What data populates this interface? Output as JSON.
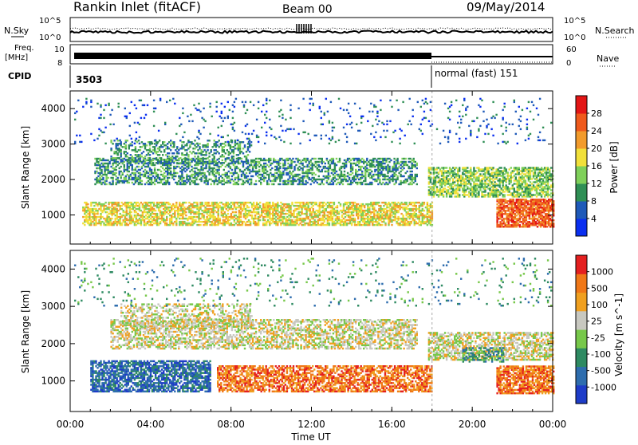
{
  "header": {
    "station": "Rankin Inlet (fitACF)",
    "beam": "Beam 00",
    "date": "09/May/2014"
  },
  "top_panels": {
    "nsky_label": "N.Sky",
    "nsearch_label": "N.Search",
    "noise_ticks": [
      "10^5",
      "10^0"
    ],
    "freq_label_line1": "Freq.",
    "freq_label_line2": "[MHz]",
    "freq_ticks": [
      "10",
      "8"
    ],
    "nave_label": "Nave",
    "nave_ticks": [
      "60",
      "0"
    ],
    "cpid_label": "CPID",
    "cpid_segments": [
      {
        "text": "3503",
        "start_hour": 0
      },
      {
        "text": "normal (fast) 151",
        "start_hour": 18
      }
    ]
  },
  "chart_data": [
    {
      "type": "heatmap",
      "title": "",
      "xlabel": "Time UT",
      "ylabel": "Slant Range [km]",
      "x_ticks": [
        "00:00",
        "04:00",
        "08:00",
        "12:00",
        "16:00",
        "20:00",
        "00:00"
      ],
      "x_tick_hours": [
        0,
        4,
        8,
        12,
        16,
        20,
        24
      ],
      "xlim": [
        0,
        24
      ],
      "ylim": [
        180,
        4500
      ],
      "y_ticks": [
        1000,
        2000,
        3000,
        4000
      ],
      "colorbar": {
        "label": "Power [dB]",
        "ticks": [
          "4",
          "8",
          "12",
          "16",
          "20",
          "24",
          "28"
        ],
        "colors": [
          "#0a2ff0",
          "#1f5ab9",
          "#2f8f55",
          "#7fd05a",
          "#f1e03a",
          "#f29b2c",
          "#ef5a1c",
          "#e31616"
        ]
      },
      "bands": [
        {
          "t0": 0.6,
          "t1": 18,
          "r0": 700,
          "r1": 1350,
          "level": 4,
          "density": 0.65
        },
        {
          "t0": 1.2,
          "t1": 17.2,
          "r0": 1850,
          "r1": 2600,
          "level": 2,
          "density": 0.5
        },
        {
          "t0": 2.0,
          "t1": 9.0,
          "r0": 2450,
          "r1": 3100,
          "level": 2,
          "density": 0.35
        },
        {
          "t0": 17.8,
          "t1": 24,
          "r0": 1500,
          "r1": 2350,
          "level": 3,
          "density": 0.65
        },
        {
          "t0": 21.2,
          "t1": 24,
          "r0": 650,
          "r1": 1450,
          "level": 6,
          "density": 0.8
        },
        {
          "t0": 0.2,
          "t1": 24,
          "r0": 3000,
          "r1": 4300,
          "level": 1,
          "density": 0.05
        }
      ]
    },
    {
      "type": "heatmap",
      "title": "",
      "xlabel": "Time UT",
      "ylabel": "Slant Range [km]",
      "x_ticks": [
        "00:00",
        "04:00",
        "08:00",
        "12:00",
        "16:00",
        "20:00",
        "00:00"
      ],
      "x_tick_hours": [
        0,
        4,
        8,
        12,
        16,
        20,
        24
      ],
      "xlim": [
        0,
        24
      ],
      "ylim": [
        180,
        4500
      ],
      "y_ticks": [
        1000,
        2000,
        3000,
        4000
      ],
      "colorbar": {
        "label": "Velocity [m s^-1]",
        "ticks": [
          "1000",
          "500",
          "100",
          "25",
          "-25",
          "-100",
          "-500",
          "-1000"
        ],
        "colors": [
          "#1e3cc8",
          "#2e6dae",
          "#2e8a62",
          "#77c84a",
          "#c8c8c0",
          "#f0a020",
          "#f07818",
          "#e42020"
        ]
      },
      "bands": [
        {
          "t0": 1.0,
          "t1": 7.0,
          "r0": 700,
          "r1": 1550,
          "level": 1,
          "density": 0.7
        },
        {
          "t0": 7.3,
          "t1": 18,
          "r0": 700,
          "r1": 1400,
          "level": 6,
          "density": 0.65
        },
        {
          "t0": 2.0,
          "t1": 17.2,
          "r0": 1850,
          "r1": 2650,
          "level": 4,
          "density": 0.55
        },
        {
          "t0": 2.5,
          "t1": 9.0,
          "r0": 2450,
          "r1": 3050,
          "level": 4,
          "density": 0.35
        },
        {
          "t0": 17.8,
          "t1": 24,
          "r0": 1550,
          "r1": 2300,
          "level": 4,
          "density": 0.6
        },
        {
          "t0": 19.5,
          "t1": 21.5,
          "r0": 1500,
          "r1": 1900,
          "level": 2,
          "density": 0.5
        },
        {
          "t0": 21.2,
          "t1": 24,
          "r0": 650,
          "r1": 1400,
          "level": 6,
          "density": 0.75
        },
        {
          "t0": 0.2,
          "t1": 24,
          "r0": 3000,
          "r1": 4300,
          "level": 2,
          "density": 0.05
        }
      ]
    }
  ]
}
